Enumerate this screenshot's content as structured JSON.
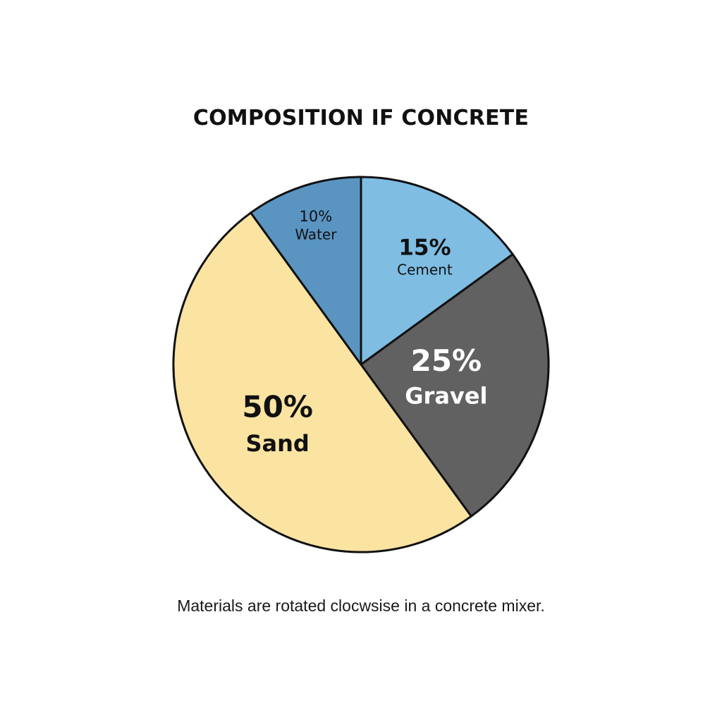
{
  "chart_data": {
    "type": "pie",
    "title": "COMPOSITION IF CONCRETE",
    "caption": "Materials are rotated clocwsise in a concrete mixer.",
    "slices": [
      {
        "label": "Cement",
        "pct_label": "15%",
        "value": 15,
        "color": "#7fbde3",
        "text_color": "#111111"
      },
      {
        "label": "Gravel",
        "pct_label": "25%",
        "value": 25,
        "color": "#616161",
        "text_color": "#ffffff"
      },
      {
        "label": "Sand",
        "pct_label": "50%",
        "value": 50,
        "color": "#fbe3a2",
        "text_color": "#111111"
      },
      {
        "label": "Water",
        "pct_label": "10%",
        "value": 10,
        "color": "#5a95c2",
        "text_color": "#111111"
      }
    ],
    "start_angle_deg": 0,
    "direction": "clockwise",
    "legend": "none"
  }
}
